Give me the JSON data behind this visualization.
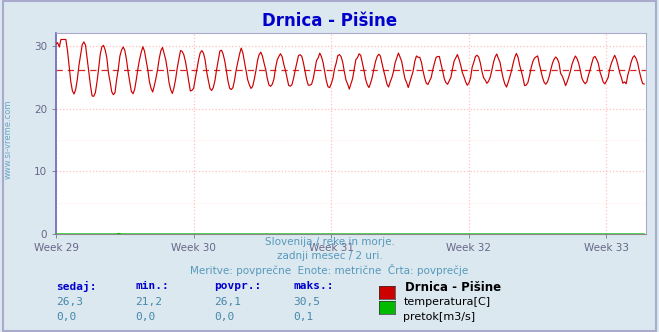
{
  "title": "Drnica - Pišine",
  "bg_color": "#dce8f0",
  "plot_bg_color": "#ffffff",
  "grid_color": "#ffb0b0",
  "grid_minor_color": "#ffe0e0",
  "ylim": [
    0,
    32
  ],
  "yticks": [
    0,
    10,
    20,
    30
  ],
  "xlim": [
    0,
    360
  ],
  "week_labels": [
    "Week 29",
    "Week 30",
    "Week 31",
    "Week 32",
    "Week 33"
  ],
  "week_positions": [
    0,
    84,
    168,
    252,
    336
  ],
  "temp_color": "#cc0000",
  "flow_color": "#00bb00",
  "avg_line_color": "#cc0000",
  "avg_value": 26.1,
  "temp_min": 21.2,
  "temp_max": 30.5,
  "temp_current": 26.3,
  "temp_avg": 26.1,
  "flow_current": "0,0",
  "flow_min": "0,0",
  "flow_avg": "0,0",
  "flow_max": "0,1",
  "n_points": 360,
  "subtitle1": "Slovenija / reke in morje.",
  "subtitle2": "zadnji mesec / 2 uri.",
  "subtitle3": "Meritve: povprečne  Enote: metrične  Črta: povprečje",
  "label_sedaj": "sedaj:",
  "label_min": "min.:",
  "label_povpr": "povpr.:",
  "label_maks": "maks.:",
  "label_station": "Drnica - Pišine",
  "label_temp": "temperatura[C]",
  "label_flow": "pretok[m3/s]",
  "watermark": "www.si-vreme.com",
  "title_color": "#0000cc",
  "subtitle_color": "#5599bb",
  "table_header_color": "#0000cc",
  "table_value_color": "#4488aa",
  "axis_tick_color": "#666688",
  "spine_color": "#aaaacc",
  "border_color": "#aaaacc"
}
